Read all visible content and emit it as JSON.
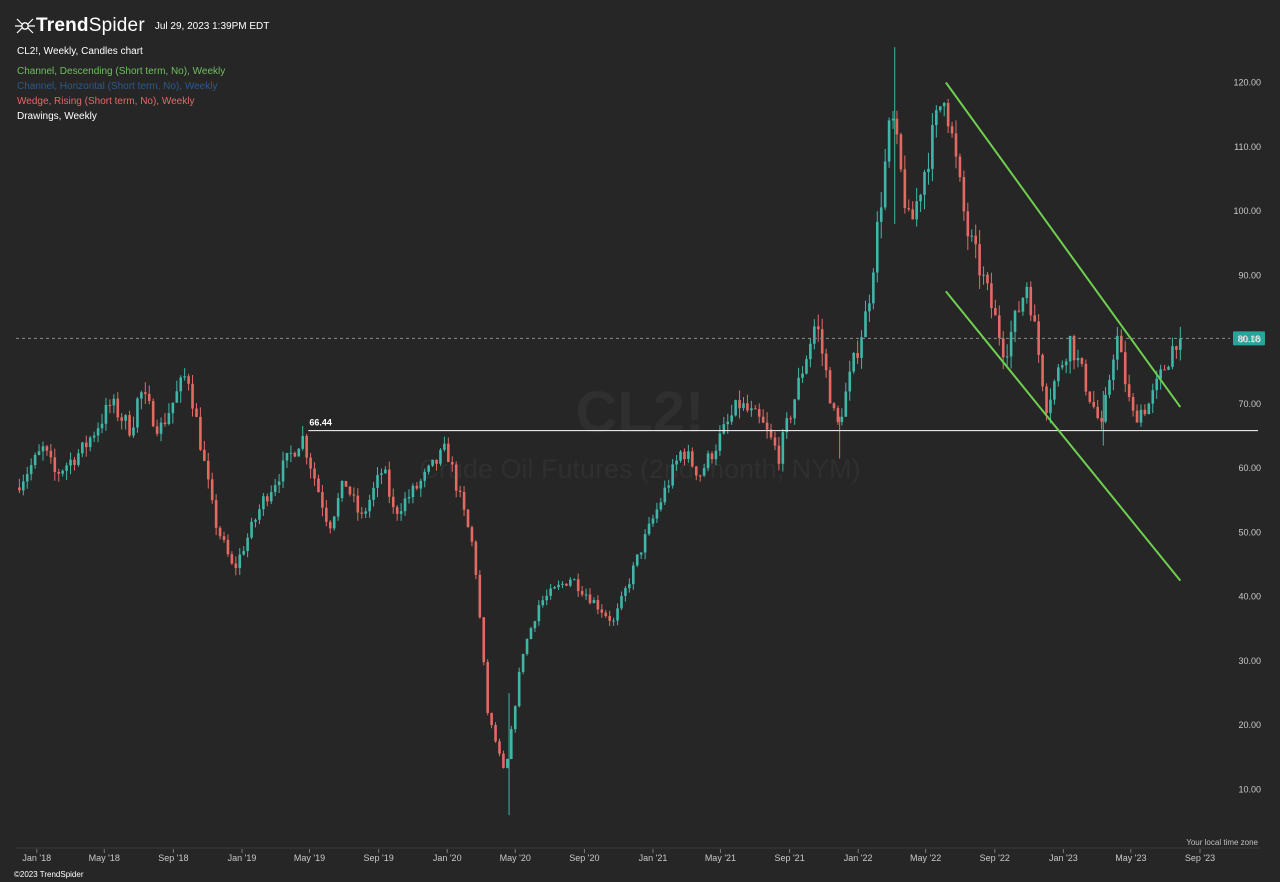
{
  "header": {
    "brand": "TrendSpider",
    "timestamp": "Jul 29, 2023 1:39PM EDT"
  },
  "legend": {
    "title": "CL2!, Weekly, Candles chart",
    "items": [
      {
        "label": "Channel, Descending (Short term, No), Weekly",
        "color": "#6fbf5f"
      },
      {
        "label": "Channel, Horizontal (Short term, No), Weekly",
        "color": "#2c5a8c"
      },
      {
        "label": "Wedge, Rising (Short term, No), Weekly",
        "color": "#e06a66"
      },
      {
        "label": "Drawings, Weekly",
        "color": "#ffffff"
      }
    ]
  },
  "watermark": {
    "symbol": "CL2!",
    "name": "Crude Oil Futures (2nd month, NYM)"
  },
  "footer": {
    "copyright": "©2023 TrendSpider",
    "timezone_note": "Your local time zone"
  },
  "colors": {
    "background": "#262626",
    "up": "#3fb7a8",
    "down": "#e36a62",
    "channel": "#6fd04f",
    "last_price_badge": "#26a69a"
  },
  "chart_data": {
    "type": "candlestick",
    "symbol": "CL2!",
    "interval": "Weekly",
    "ylim": [
      5,
      125
    ],
    "y_ticks": [
      10,
      20,
      30,
      40,
      50,
      60,
      70,
      80,
      90,
      100,
      110,
      120
    ],
    "y_tick_labels": [
      "10.00",
      "20.00",
      "30.00",
      "40.00",
      "50.00",
      "60.00",
      "70.00",
      "80.00",
      "90.00",
      "100.00",
      "110.00",
      "120.00"
    ],
    "x_ticks": [
      {
        "date": "2018-01-01",
        "label": "Jan '18"
      },
      {
        "date": "2018-05-01",
        "label": "May '18"
      },
      {
        "date": "2018-09-01",
        "label": "Sep '18"
      },
      {
        "date": "2019-01-01",
        "label": "Jan '19"
      },
      {
        "date": "2019-05-01",
        "label": "May '19"
      },
      {
        "date": "2019-09-01",
        "label": "Sep '19"
      },
      {
        "date": "2020-01-01",
        "label": "Jan '20"
      },
      {
        "date": "2020-05-01",
        "label": "May '20"
      },
      {
        "date": "2020-09-01",
        "label": "Sep '20"
      },
      {
        "date": "2021-01-01",
        "label": "Jan '21"
      },
      {
        "date": "2021-05-01",
        "label": "May '21"
      },
      {
        "date": "2021-09-01",
        "label": "Sep '21"
      },
      {
        "date": "2022-01-01",
        "label": "Jan '22"
      },
      {
        "date": "2022-05-01",
        "label": "May '22"
      },
      {
        "date": "2022-09-01",
        "label": "Sep '22"
      },
      {
        "date": "2023-01-01",
        "label": "Jan '23"
      },
      {
        "date": "2023-05-01",
        "label": "May '23"
      },
      {
        "date": "2023-09-01",
        "label": "Sep '23"
      }
    ],
    "price_path": [
      [
        "2017-12-01",
        57
      ],
      [
        "2018-01-20",
        63
      ],
      [
        "2018-02-10",
        59
      ],
      [
        "2018-04-01",
        63
      ],
      [
        "2018-05-20",
        70
      ],
      [
        "2018-06-25",
        66
      ],
      [
        "2018-07-10",
        72
      ],
      [
        "2018-08-15",
        66
      ],
      [
        "2018-10-03",
        75
      ],
      [
        "2018-11-20",
        52
      ],
      [
        "2018-12-24",
        44
      ],
      [
        "2019-02-15",
        55
      ],
      [
        "2019-04-25",
        65
      ],
      [
        "2019-06-12",
        51
      ],
      [
        "2019-07-10",
        58
      ],
      [
        "2019-08-08",
        52
      ],
      [
        "2019-09-16",
        60
      ],
      [
        "2019-10-05",
        53
      ],
      [
        "2019-11-15",
        57
      ],
      [
        "2020-01-07",
        63
      ],
      [
        "2020-02-25",
        47
      ],
      [
        "2020-03-20",
        22
      ],
      [
        "2020-04-20",
        12
      ],
      [
        "2020-05-20",
        31
      ],
      [
        "2020-06-20",
        39
      ],
      [
        "2020-08-15",
        43
      ],
      [
        "2020-10-30",
        36
      ],
      [
        "2020-12-20",
        48
      ],
      [
        "2021-03-01",
        63
      ],
      [
        "2021-04-01",
        59
      ],
      [
        "2021-06-10",
        70
      ],
      [
        "2021-07-20",
        67
      ],
      [
        "2021-08-20",
        62
      ],
      [
        "2021-10-25",
        83
      ],
      [
        "2021-12-01",
        66
      ],
      [
        "2022-01-25",
        85
      ],
      [
        "2022-03-08",
        115
      ],
      [
        "2022-04-10",
        97
      ],
      [
        "2022-06-10",
        119
      ],
      [
        "2022-07-20",
        97
      ],
      [
        "2022-08-20",
        89
      ],
      [
        "2022-09-26",
        78
      ],
      [
        "2022-11-05",
        89
      ],
      [
        "2022-12-09",
        70
      ],
      [
        "2023-01-20",
        80
      ],
      [
        "2023-03-17",
        66
      ],
      [
        "2023-04-12",
        81
      ],
      [
        "2023-05-10",
        68
      ],
      [
        "2023-06-10",
        70
      ],
      [
        "2023-07-28",
        80.18
      ]
    ],
    "horizontal_line": {
      "label": "66.44",
      "value": 66.44,
      "start": "2019-04-29"
    },
    "descending_channel": {
      "upper": [
        [
          "2022-06-06",
          120.0
        ],
        [
          "2023-07-28",
          69.5
        ]
      ],
      "lower": [
        [
          "2022-06-06",
          87.5
        ],
        [
          "2023-07-28",
          42.5
        ]
      ]
    },
    "last_price": {
      "label": "80.18",
      "value": 80.18
    }
  }
}
